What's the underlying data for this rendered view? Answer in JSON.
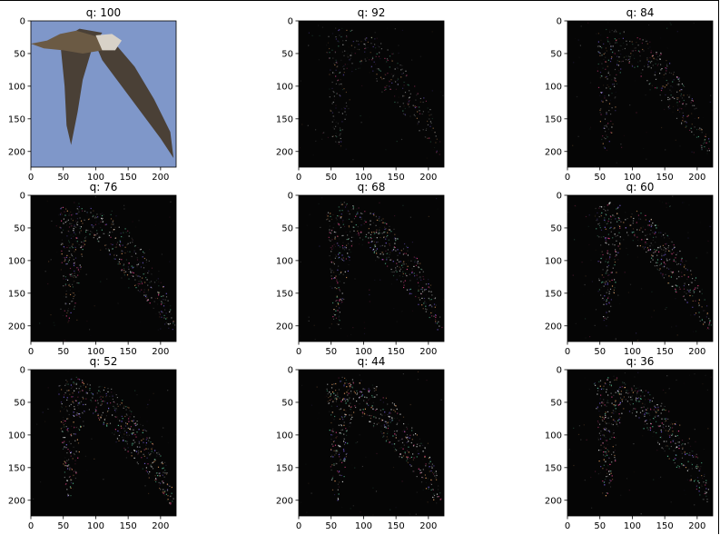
{
  "chart_data": [
    {
      "type": "image",
      "title": "q: 100",
      "content": "bird photo (brown gannet/booby in flight) on blue sky",
      "xlim": [
        0,
        224
      ],
      "ylim": [
        224,
        0
      ],
      "xticks": [
        "0",
        "50",
        "100",
        "150",
        "200"
      ],
      "yticks": [
        "0",
        "50",
        "100",
        "150",
        "200"
      ],
      "palette": {
        "background": "#7f97c9",
        "body": "#6b5a44",
        "wing": "#4a4036",
        "head": "#d8d2c8"
      }
    },
    {
      "type": "image",
      "title": "q: 92",
      "content": "JPEG difference map, speckled bird outline on black",
      "xlim": [
        0,
        224
      ],
      "ylim": [
        224,
        0
      ],
      "xticks": [
        "0",
        "50",
        "100",
        "150",
        "200"
      ],
      "yticks": [
        "0",
        "50",
        "100",
        "150",
        "200"
      ],
      "intensity": 0.35
    },
    {
      "type": "image",
      "title": "q: 84",
      "content": "JPEG difference map, speckled bird outline on black",
      "xlim": [
        0,
        224
      ],
      "ylim": [
        224,
        0
      ],
      "xticks": [
        "0",
        "50",
        "100",
        "150",
        "200"
      ],
      "yticks": [
        "0",
        "50",
        "100",
        "150",
        "200"
      ],
      "intensity": 0.55
    },
    {
      "type": "image",
      "title": "q: 76",
      "content": "JPEG difference map, speckled bird outline on black",
      "xlim": [
        0,
        224
      ],
      "ylim": [
        224,
        0
      ],
      "xticks": [
        "0",
        "50",
        "100",
        "150",
        "200"
      ],
      "yticks": [
        "0",
        "50",
        "100",
        "150",
        "200"
      ],
      "intensity": 0.7
    },
    {
      "type": "image",
      "title": "q: 68",
      "content": "JPEG difference map, speckled bird outline on black",
      "xlim": [
        0,
        224
      ],
      "ylim": [
        224,
        0
      ],
      "xticks": [
        "0",
        "50",
        "100",
        "150",
        "200"
      ],
      "yticks": [
        "0",
        "50",
        "100",
        "150",
        "200"
      ],
      "intensity": 0.75
    },
    {
      "type": "image",
      "title": "q: 60",
      "content": "JPEG difference map, speckled bird outline on black",
      "xlim": [
        0,
        224
      ],
      "ylim": [
        224,
        0
      ],
      "xticks": [
        "0",
        "50",
        "100",
        "150",
        "200"
      ],
      "yticks": [
        "0",
        "50",
        "100",
        "150",
        "200"
      ],
      "intensity": 0.8
    },
    {
      "type": "image",
      "title": "q: 52",
      "content": "JPEG difference map, speckled bird outline on black",
      "xlim": [
        0,
        224
      ],
      "ylim": [
        224,
        0
      ],
      "xticks": [
        "0",
        "50",
        "100",
        "150",
        "200"
      ],
      "yticks": [
        "0",
        "50",
        "100",
        "150",
        "200"
      ],
      "intensity": 0.85
    },
    {
      "type": "image",
      "title": "q: 44",
      "content": "JPEG difference map, speckled bird outline on black",
      "xlim": [
        0,
        224
      ],
      "ylim": [
        224,
        0
      ],
      "xticks": [
        "0",
        "50",
        "100",
        "150",
        "200"
      ],
      "yticks": [
        "0",
        "50",
        "100",
        "150",
        "200"
      ],
      "intensity": 0.85
    },
    {
      "type": "image",
      "title": "q: 36",
      "content": "JPEG difference map, speckled bird outline on black",
      "xlim": [
        0,
        224
      ],
      "ylim": [
        224,
        0
      ],
      "xticks": [
        "0",
        "50",
        "100",
        "150",
        "200"
      ],
      "yticks": [
        "0",
        "50",
        "100",
        "150",
        "200"
      ],
      "intensity": 0.9
    }
  ]
}
